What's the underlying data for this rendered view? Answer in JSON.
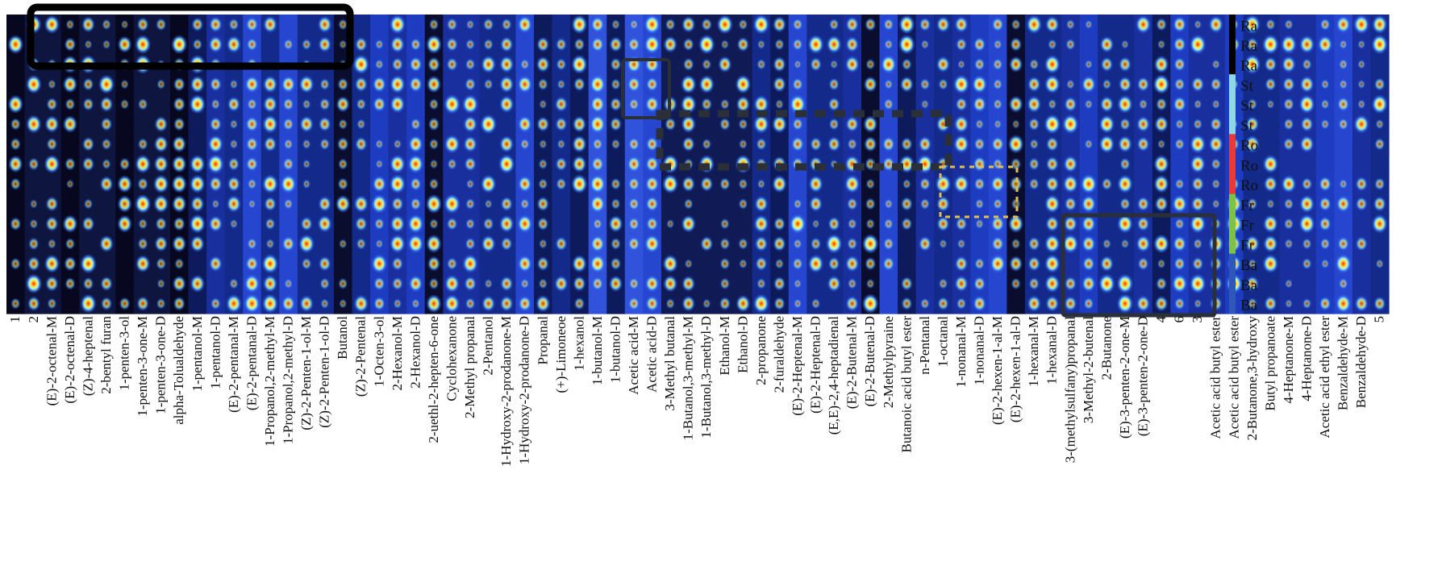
{
  "chart_data": {
    "type": "heatmap",
    "title": "",
    "xlabel": "",
    "ylabel": "",
    "columns": [
      "1",
      "2",
      "(E)-2-octenal-M",
      "(E)-2-octenal-D",
      "(Z)-4-heptenal",
      "2-bentyl furan",
      "1-penten-3-ol",
      "1-penten-3-one-M",
      "1-penten-3-one-D",
      "alpha-Tolualdehyde",
      "1-pentanol-M",
      "1-pentanol-D",
      "(E)-2-pentanal-M",
      "(E)-2-pentanal-D",
      "1-Propanol,2-methyl-M",
      "1-Propanol,2-methyl-D",
      "(Z)-2-Penten-1-ol-M",
      "(Z)-2-Penten-1-ol-D",
      "Butanol",
      "(Z)-2-Pentenal",
      "1-Octen-3-ol",
      "2-Hexanol-M",
      "2-Hexanol-D",
      "2-uethl-2-hepten-6-one",
      "Cyclohexanone",
      "2-Methyl propanal",
      "2-Pentanol",
      "1-Hydroxy-2-prodanone-M",
      "1-Hydroxy-2-prodanone-D",
      "Propanal",
      "(+)-Limoneoe",
      "1-hexanol",
      "1-butanol-M",
      "1-butanol-D",
      "Acetic acid-M",
      "Acetic acid-D",
      "3-Methyl butanal",
      "1-Butanol,3-methyl-M",
      "1-Butanol,3-methyl-D",
      "Ethanol-M",
      "Ethanol-D",
      "2-propanone",
      "2-furaldehyde",
      "(E)-2-Heptenal-M",
      "(E)-2-Heptenal-D",
      "(E,E)-2,4-heptadienal",
      "(E)-2-Butenal-M",
      "(E)-2-Butenal-D",
      "2-Methylpyraine",
      "Butanoic acid butyl ester",
      "n-Pentanal",
      "1-octanal",
      "1-nonanal-M",
      "1-nonanal-D",
      "(E)-2-hexen-1-al-M",
      "(E)-2-hexen-1-al-D",
      "1-hexanal-M",
      "1-hexanal-D",
      "3-(methylsulfany)propanal",
      "3-Methyl-2-butenal",
      "2-Butanone",
      "(E)-3-penten-2-one-M",
      "(E)-3-penten-2-one-D",
      "4",
      "6",
      "3",
      "Acetic acid butyl ester",
      "Acetic acid butyl ester",
      "2-Butanone,3-hydroxy",
      "Butyl propanoate",
      "4-Heptanone-M",
      "4-Heptanone-D",
      "Acetic acid ethyl ester",
      "Benzaldehyde-M",
      "Benzaldehyde-D",
      "5"
    ],
    "rows": [
      "Ra",
      "Ra",
      "Ra",
      "St",
      "St",
      "St",
      "Ro",
      "Ro",
      "Ro",
      "Fr",
      "Fr",
      "Fr",
      "Ba",
      "Ba",
      "Ba"
    ],
    "row_groups": [
      {
        "label": "Ra",
        "color": "#000000"
      },
      {
        "label": "St",
        "color": "#8fd6e8"
      },
      {
        "label": "Ro",
        "color": "#e83a3a"
      },
      {
        "label": "Fr",
        "color": "#7cc14a"
      },
      {
        "label": "Ba",
        "color": "#2f57b8"
      }
    ],
    "colors": {
      "low": "#06071e",
      "mid": "#2a48d6",
      "high_mid": "#9fe3ff",
      "peak": "#f21c1c"
    },
    "legend": "right"
  }
}
